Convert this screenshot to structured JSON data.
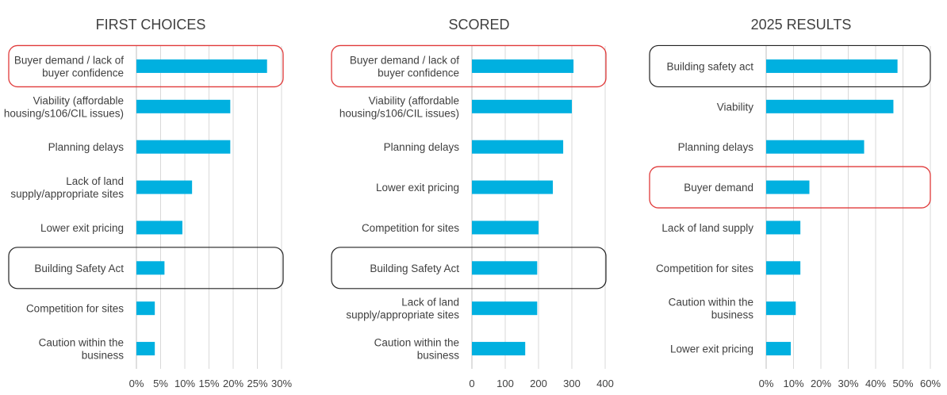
{
  "colors": {
    "bar": "#00B0E0",
    "highlight_red": "#E03A3A",
    "highlight_black": "#222222",
    "text": "#404040",
    "grid": "#d9d9d9"
  },
  "chart_data": [
    {
      "type": "bar",
      "orientation": "horizontal",
      "title": "FIRST CHOICES",
      "categories": [
        [
          "Buyer demand / lack of",
          "buyer confidence"
        ],
        [
          "Viability (affordable",
          "housing/s106/CIL issues)"
        ],
        [
          "Planning delays"
        ],
        [
          "Lack of land",
          "supply/appropriate sites"
        ],
        [
          "Lower exit pricing"
        ],
        [
          "Building Safety Act"
        ],
        [
          "Competition for sites"
        ],
        [
          "Caution within the",
          "business"
        ]
      ],
      "values": [
        27,
        19.4,
        19.4,
        11.5,
        9.5,
        5.8,
        3.8,
        3.8
      ],
      "xlim": [
        0,
        30
      ],
      "ticks": [
        0,
        5,
        10,
        15,
        20,
        25,
        30
      ],
      "tick_labels": [
        "0%",
        "5%",
        "10%",
        "15%",
        "20%",
        "25%",
        "30%"
      ],
      "highlights": [
        {
          "index": 0,
          "color": "red"
        },
        {
          "index": 5,
          "color": "black"
        }
      ]
    },
    {
      "type": "bar",
      "orientation": "horizontal",
      "title": "SCORED",
      "categories": [
        [
          "Buyer demand / lack of",
          "buyer confidence"
        ],
        [
          "Viability (affordable",
          "housing/s106/CIL issues)"
        ],
        [
          "Planning delays"
        ],
        [
          "Lower exit pricing"
        ],
        [
          "Competition for sites"
        ],
        [
          "Building Safety Act"
        ],
        [
          "Lack of land",
          "supply/appropriate sites"
        ],
        [
          "Caution within the",
          "business"
        ]
      ],
      "values": [
        305,
        300,
        274,
        243,
        200,
        196,
        196,
        160
      ],
      "xlim": [
        0,
        400
      ],
      "ticks": [
        0,
        100,
        200,
        300,
        400
      ],
      "tick_labels": [
        "0",
        "100",
        "200",
        "300",
        "400"
      ],
      "highlights": [
        {
          "index": 0,
          "color": "red"
        },
        {
          "index": 5,
          "color": "black"
        }
      ]
    },
    {
      "type": "bar",
      "orientation": "horizontal",
      "title": "2025 RESULTS",
      "categories": [
        [
          "Building safety act"
        ],
        [
          "Viability"
        ],
        [
          "Planning delays"
        ],
        [
          "Buyer demand"
        ],
        [
          "Lack of land supply"
        ],
        [
          "Competition for sites"
        ],
        [
          "Caution within the",
          "business"
        ],
        [
          "Lower exit pricing"
        ]
      ],
      "values": [
        48,
        46.5,
        35.8,
        15.8,
        12.5,
        12.5,
        10.8,
        9
      ],
      "xlim": [
        0,
        60
      ],
      "ticks": [
        0,
        10,
        20,
        30,
        40,
        50,
        60
      ],
      "tick_labels": [
        "0%",
        "10%",
        "20%",
        "30%",
        "40%",
        "50%",
        "60%"
      ],
      "highlights": [
        {
          "index": 0,
          "color": "black"
        },
        {
          "index": 3,
          "color": "red"
        }
      ]
    }
  ]
}
